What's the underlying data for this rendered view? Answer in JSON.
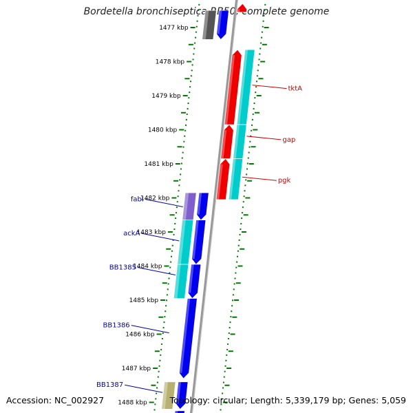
{
  "title": "Bordetella bronchiseptica RB50, complete genome",
  "accession": "Accession: NC_002927",
  "topology": "Topology: circular; Length: 5,339,179 bp; Genes: 5,059",
  "colors": {
    "forward_gene": "#0000ee",
    "reverse_gene": "#ee0000",
    "cyan_band": "#00cccc",
    "purple_band": "#7f5fcc",
    "gray_gene": "#555555",
    "olive_band": "#b8b070",
    "tick_green": "#007700",
    "backbone": "#999999",
    "label_blue": "#0000aa",
    "label_red": "#cc0000"
  },
  "ticks": [
    {
      "label": "1477 kbp",
      "kbp": 1477
    },
    {
      "label": "1478 kbp",
      "kbp": 1478
    },
    {
      "label": "1479 kbp",
      "kbp": 1479
    },
    {
      "label": "1480 kbp",
      "kbp": 1480
    },
    {
      "label": "1481 kbp",
      "kbp": 1481
    },
    {
      "label": "1482 kbp",
      "kbp": 1482
    },
    {
      "label": "1483 kbp",
      "kbp": 1483
    },
    {
      "label": "1484 kbp",
      "kbp": 1484
    },
    {
      "label": "1485 kbp",
      "kbp": 1485
    },
    {
      "label": "1486 kbp",
      "kbp": 1486
    },
    {
      "label": "1487 kbp",
      "kbp": 1487
    },
    {
      "label": "1488 kbp",
      "kbp": 1488
    }
  ],
  "genes_forward": [
    {
      "name": "fabI",
      "start": 1481.85,
      "end": 1482.65,
      "band": "purple"
    },
    {
      "name": "ackA",
      "start": 1482.65,
      "end": 1483.95,
      "band": "cyan"
    },
    {
      "name": "BB1385",
      "start": 1483.95,
      "end": 1484.95,
      "band": "cyan"
    },
    {
      "name": "BB1386",
      "start": 1484.95,
      "end": 1487.3,
      "band": "none"
    },
    {
      "name": "BB1387",
      "start": 1487.4,
      "end": 1488.2,
      "band": "olive"
    },
    {
      "name": "",
      "start": 1488.25,
      "end": 1488.6,
      "band": "none"
    },
    {
      "name": "",
      "start": 1476.5,
      "end": 1477.35,
      "band": "gray"
    }
  ],
  "genes_reverse": [
    {
      "name": "tktA",
      "start": 1477.65,
      "end": 1479.85,
      "band": "cyan"
    },
    {
      "name": "gap",
      "start": 1479.85,
      "end": 1480.85,
      "band": "cyan"
    },
    {
      "name": "pgk",
      "start": 1480.85,
      "end": 1482.05,
      "band": "cyan"
    },
    {
      "name": "",
      "start": 1476.3,
      "end": 1476.55,
      "band": "none"
    }
  ],
  "gene_labels": [
    {
      "name": "fabI",
      "color": "blue",
      "kbp": 1482.1
    },
    {
      "name": "ackA",
      "color": "blue",
      "kbp": 1483.1
    },
    {
      "name": "BB1385",
      "color": "blue",
      "kbp": 1484.1
    },
    {
      "name": "BB1386",
      "color": "blue",
      "kbp": 1485.8
    },
    {
      "name": "BB1387",
      "color": "blue",
      "kbp": 1487.55
    },
    {
      "name": "tktA",
      "color": "red",
      "kbp": 1478.85
    },
    {
      "name": "gap",
      "color": "red",
      "kbp": 1480.35
    },
    {
      "name": "pgk",
      "color": "red",
      "kbp": 1481.55
    }
  ]
}
